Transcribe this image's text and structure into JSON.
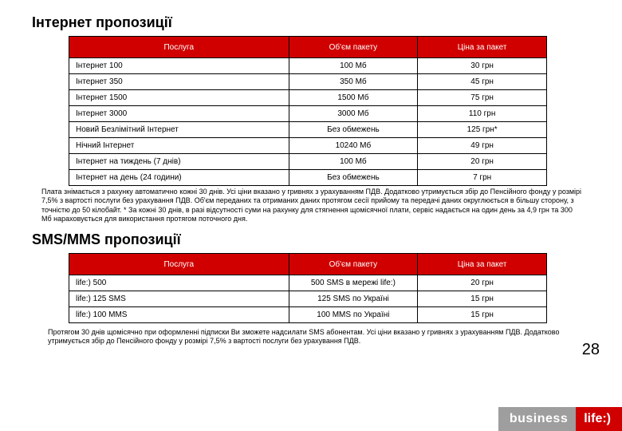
{
  "section1": {
    "title": "Інтернет пропозиції",
    "headers": [
      "Послуга",
      "Об'єм пакету",
      "Ціна за пакет"
    ],
    "rows": [
      [
        "Інтернет 100",
        "100 Мб",
        "30 грн"
      ],
      [
        "Інтернет 350",
        "350 Мб",
        "45 грн"
      ],
      [
        "Інтернет 1500",
        "1500 Мб",
        "75 грн"
      ],
      [
        "Інтернет 3000",
        "3000 Мб",
        "110 грн"
      ],
      [
        "Новий Безлімітний Інтернет",
        "Без обмежень",
        "125 грн*"
      ],
      [
        "Нічний Інтернет",
        "10240 Мб",
        "49 грн"
      ],
      [
        "Інтернет на тиждень (7 днів)",
        "100 Мб",
        "20 грн"
      ],
      [
        "Інтернет на день (24 години)",
        "Без обмежень",
        "7 грн"
      ]
    ],
    "note": "Плата знімається з рахунку автоматично кожні 30 днів. Усі ціни вказано у гривнях з урахуванням ПДВ. Додатково утримується збір до Пенсійного фонду у розмірі 7,5% з вартості послуги без урахування ПДВ. Об'єм переданих та отриманих даних протягом сесії прийому та передачі даних округлюється в більшу сторону, з точністю до 50 кілобайт.\n* За кожні 30 днів, в разі відсутності суми на рахунку для стягнення щомісячної плати, сервіс надається на один день за 4,9 грн та 300 Мб нараховується для використання протягом поточного дня."
  },
  "section2": {
    "title": "SMS/MMS пропозиції",
    "headers": [
      "Послуга",
      "Об'єм пакету",
      "Ціна за пакет"
    ],
    "rows": [
      [
        "life:) 500",
        "500 SMS в мережі life:)",
        "20 грн"
      ],
      [
        "life:) 125 SMS",
        "125 SMS по Україні",
        "15 грн"
      ],
      [
        "life:) 100 MMS",
        "100 MMS по Україні",
        "15 грн"
      ]
    ],
    "note": "Протягом 30 днів щомісячно при оформленні підписки Ви зможете надсилати SMS абонентам. Усі ціни вказано у гривнях з урахуванням ПДВ. Додатково утримується збір до Пенсійного фонду у розмірі 7,5% з вартості послуги без урахування ПДВ."
  },
  "pageNumber": "28",
  "logo": {
    "left": "business",
    "right": "life:)"
  }
}
